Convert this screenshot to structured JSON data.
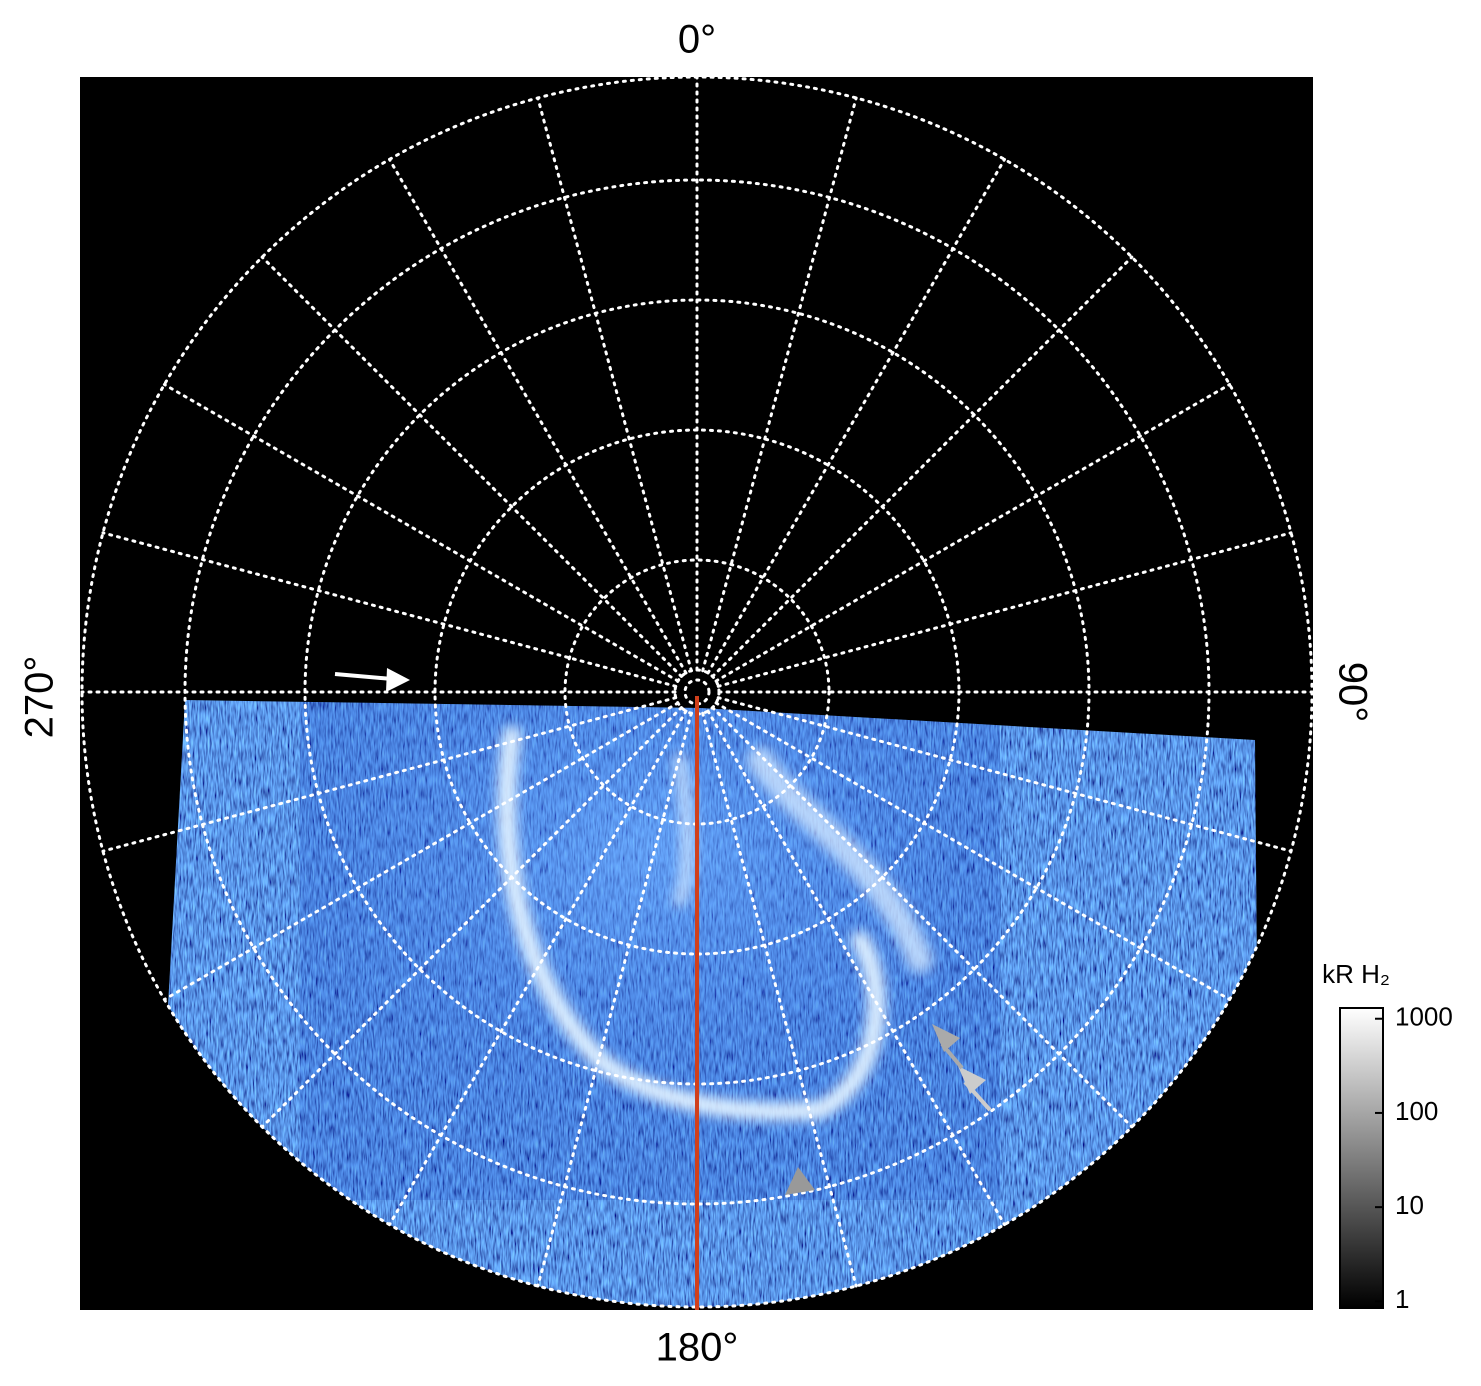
{
  "plot": {
    "angle_labels": {
      "top": "0°",
      "right": "90°",
      "bottom": "180°",
      "left": "270°"
    },
    "colorbar": {
      "title": "kR H₂",
      "scale": "log",
      "lim": [
        0.85,
        1300
      ],
      "ticks": [
        1,
        10,
        100,
        1000
      ]
    }
  }
}
